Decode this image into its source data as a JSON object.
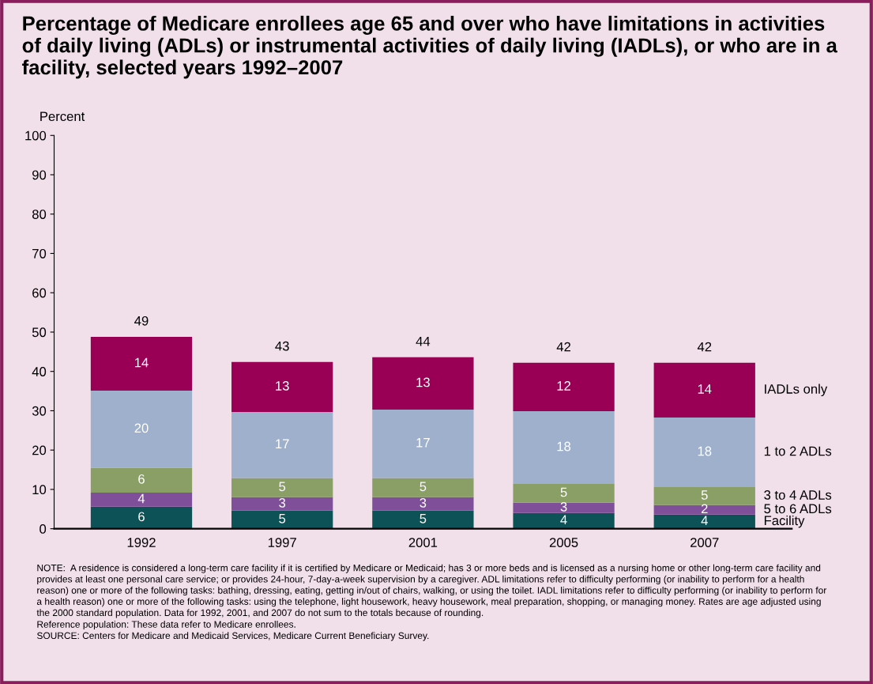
{
  "chart_data": {
    "type": "bar",
    "stacked": true,
    "title": "Percentage of Medicare enrollees age 65 and over who have limitations in activities of daily living (ADLs) or instrumental activities of daily living (IADLs), or who are in a facility, selected years 1992–2007",
    "ylabel": "Percent",
    "categories": [
      "1992",
      "1997",
      "2001",
      "2005",
      "2007"
    ],
    "series": [
      {
        "name": "Facility",
        "color": "#0d5256",
        "values": [
          5.6,
          4.6,
          4.6,
          4.0,
          3.6
        ],
        "value_labels": [
          "6",
          "5",
          "5",
          "4",
          "4"
        ]
      },
      {
        "name": "5 to 6 ADLs",
        "color": "#7f4f9a",
        "values": [
          3.6,
          3.4,
          3.4,
          2.6,
          2.4
        ],
        "value_labels": [
          "4",
          "3",
          "3",
          "3",
          "2"
        ]
      },
      {
        "name": "3 to 4 ADLs",
        "color": "#8a9f66",
        "values": [
          6.3,
          4.9,
          4.9,
          4.8,
          4.6
        ],
        "value_labels": [
          "6",
          "5",
          "5",
          "5",
          "5"
        ]
      },
      {
        "name": "1 to 2 ADLs",
        "color": "#9fb0cc",
        "values": [
          19.6,
          16.8,
          17.4,
          18.5,
          17.7
        ],
        "value_labels": [
          "20",
          "17",
          "17",
          "18",
          "18"
        ]
      },
      {
        "name": "IADLs only",
        "color": "#990055",
        "values": [
          13.7,
          12.7,
          13.3,
          12.3,
          13.9
        ],
        "value_labels": [
          "14",
          "13",
          "13",
          "12",
          "14"
        ]
      }
    ],
    "totals": [
      "49",
      "43",
      "44",
      "42",
      "42"
    ],
    "ylim": [
      0,
      100
    ],
    "yticks": [
      0,
      10,
      20,
      30,
      40,
      50,
      60,
      70,
      80,
      90,
      100
    ],
    "grid": false,
    "annotations": [
      "NOTE:  A residence is considered a long-term care facility if it is certified by Medicare or Medicaid; has 3 or more beds and is licensed as a nursing home or other long-term care facility and provides at least one personal care service; or provides 24-hour, 7-day-a-week supervision by a caregiver. ADL limitations refer to difficulty performing (or inability to perform for a health reason) one or more of the following tasks: bathing, dressing, eating, getting in/out of chairs, walking, or using the toilet. IADL limitations refer to difficulty performing (or inability to perform for a health reason) one or more of the following tasks: using the telephone, light housework, heavy housework, meal preparation, shopping, or managing money. Rates are age adjusted using the 2000 standard population. Data for 1992, 2001, and 2007 do not sum to the totals because of rounding.",
      "Reference population: These data refer to Medicare enrollees.",
      "SOURCE: Centers for Medicare and Medicaid Services, Medicare Current Beneficiary Survey."
    ]
  }
}
